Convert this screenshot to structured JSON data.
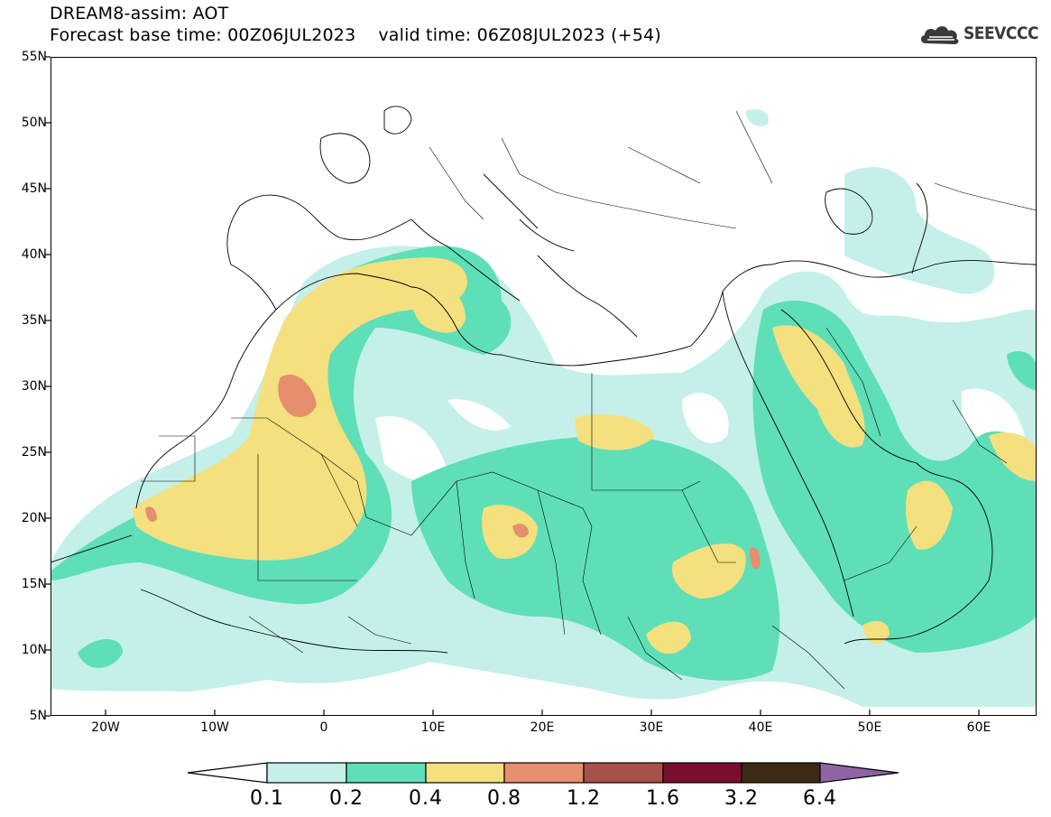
{
  "title": {
    "line1": "DREAM8-assim: AOT",
    "line2": "Forecast base time: 00Z06JUL2023    valid time: 06Z08JUL2023 (+54)"
  },
  "logo": {
    "text": "SEEVCCC",
    "icon": "cloud-logo-icon"
  },
  "map": {
    "lon_range": [
      -25,
      65
    ],
    "lat_range": [
      5,
      55
    ],
    "y_ticks": [
      "55N",
      "50N",
      "45N",
      "40N",
      "35N",
      "30N",
      "25N",
      "20N",
      "15N",
      "10N",
      "5N"
    ],
    "x_ticks": [
      "20W",
      "10W",
      "0",
      "10E",
      "20E",
      "30E",
      "40E",
      "50E",
      "60E"
    ]
  },
  "colorbar": {
    "labels": [
      "0.1",
      "0.2",
      "0.4",
      "0.8",
      "1.2",
      "1.6",
      "3.2",
      "6.4"
    ],
    "colors": [
      "#ffffff",
      "#c4f0e9",
      "#5fdfb8",
      "#f4e07e",
      "#e68e6d",
      "#a8504a",
      "#7a0f2d",
      "#3a2a16",
      "#8e64a4"
    ]
  }
}
